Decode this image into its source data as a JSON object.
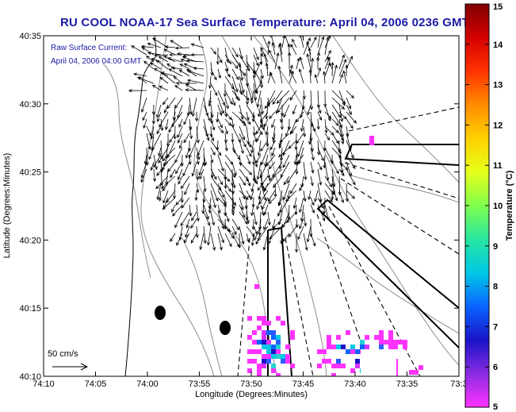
{
  "title": "RU COOL  NOAA-17  Sea Surface Temperature:  April 04, 2006 0236 GMT",
  "legend": {
    "line1": "Raw Surface Current:",
    "line2": "April 04, 2006 04:00 GMT"
  },
  "scale_label": "50 cm/s",
  "axes": {
    "xlabel": "Longitude (Degrees:Minutes)",
    "ylabel": "Latitude (Degrees:Minutes)",
    "xticks": [
      "74:10",
      "74:05",
      "74:00",
      "73:55",
      "73:50",
      "73:45",
      "73:40",
      "73:35",
      "73:3"
    ],
    "yticks": [
      "40:35",
      "40:30",
      "40:25",
      "40:20",
      "40:15",
      "40:10"
    ]
  },
  "colorbar": {
    "title": "Temperature (°C)",
    "ticks": [
      "15",
      "14",
      "13",
      "12",
      "11",
      "10",
      "9",
      "8",
      "7",
      "6",
      "5"
    ],
    "colors": [
      "#800000",
      "#d40000",
      "#ff3300",
      "#ff8c00",
      "#ffd000",
      "#e6ff1a",
      "#80ff4d",
      "#26e6a0",
      "#00c8e6",
      "#0a64ff",
      "#1a14c8",
      "#8a2be2",
      "#ff33ff"
    ]
  },
  "colors": {
    "title": "#1a1aa6",
    "frame": "#000000",
    "contour": "#8c8c8c",
    "arrows": "#000000"
  }
}
